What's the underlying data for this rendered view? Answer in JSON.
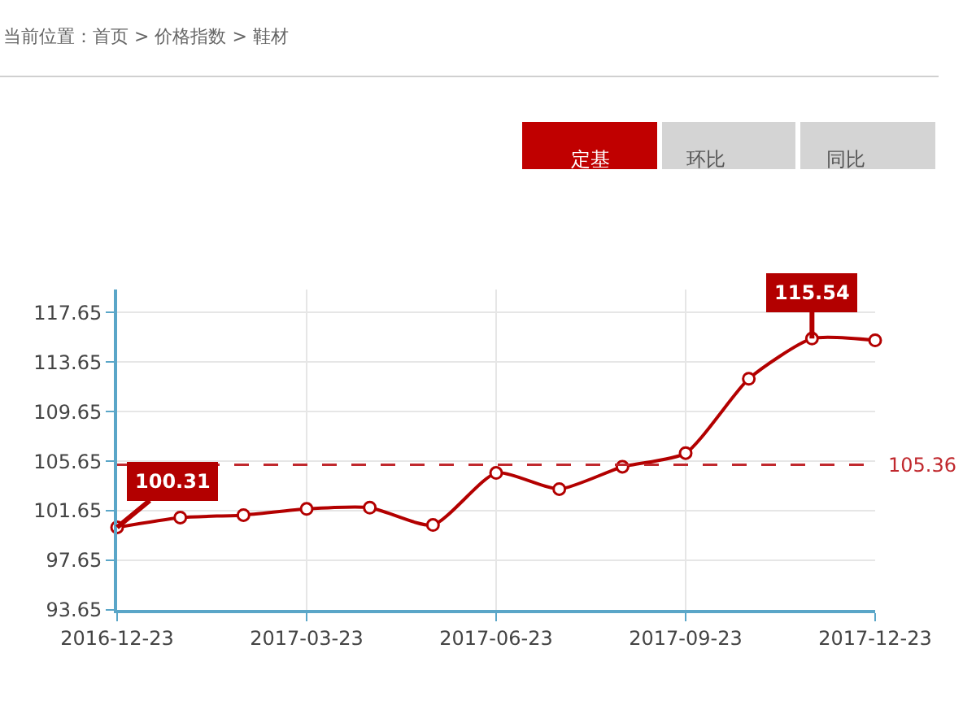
{
  "chart_data": {
    "type": "line",
    "title": "当前位置：首页 > 价格指数 > 鞋材",
    "annotations": [
      "定基",
      "环比",
      "同比"
    ],
    "categories": [
      "2016-12-23",
      null,
      null,
      "2017-03-23",
      null,
      null,
      "2017-06-23",
      null,
      null,
      "2017-09-23",
      null,
      null,
      "2017-12-23"
    ],
    "series": [
      {
        "color": "#b30000",
        "values": [
          100.31,
          101.1,
          101.3,
          101.8,
          101.9,
          100.5,
          104.7,
          103.4,
          105.2,
          106.3,
          112.3,
          115.54,
          115.4
        ],
        "value_labels": [
          "100.31",
          null,
          null,
          null,
          null,
          null,
          null,
          null,
          null,
          null,
          null,
          "115.54",
          null
        ]
      }
    ],
    "ylim": [
      93.65,
      119.5
    ],
    "yticks": [
      93.65,
      97.65,
      101.65,
      105.65,
      109.65,
      113.65,
      117.65
    ],
    "ref_lines": [
      {
        "axis": "y",
        "value": 105.36,
        "label": "105.36",
        "color": "#c0282d",
        "line_style": "dashed"
      }
    ],
    "grid": true,
    "marker": "circle",
    "line_style": "solid"
  }
}
